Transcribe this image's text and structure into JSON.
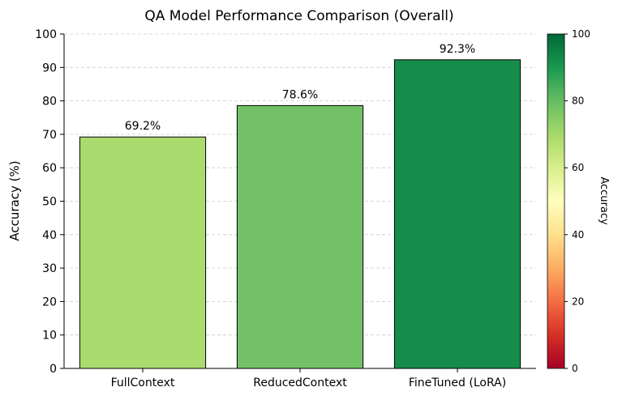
{
  "chart_data": {
    "type": "bar",
    "title": "QA Model Performance Comparison (Overall)",
    "xlabel": "",
    "ylabel": "Accuracy (%)",
    "categories": [
      "FullContext",
      "ReducedContext",
      "FineTuned (LoRA)"
    ],
    "values": [
      69.2,
      78.6,
      92.3
    ],
    "data_labels": [
      "69.2%",
      "78.6%",
      "92.3%"
    ],
    "bar_colors": [
      "#aadb6f",
      "#72c167",
      "#168c4a"
    ],
    "ylim": [
      0,
      100
    ],
    "yticks": [
      0,
      10,
      20,
      30,
      40,
      50,
      60,
      70,
      80,
      90,
      100
    ],
    "grid": "y-dashed",
    "colorbar": {
      "label": "Accuracy",
      "range": [
        0,
        100
      ],
      "ticks": [
        0,
        20,
        40,
        60,
        80,
        100
      ],
      "colormap": [
        "#a50026",
        "#d73027",
        "#f46d43",
        "#fdae61",
        "#fee08b",
        "#ffffbf",
        "#d9ef8b",
        "#a6d96a",
        "#66bd63",
        "#1a9850",
        "#006837"
      ]
    }
  }
}
